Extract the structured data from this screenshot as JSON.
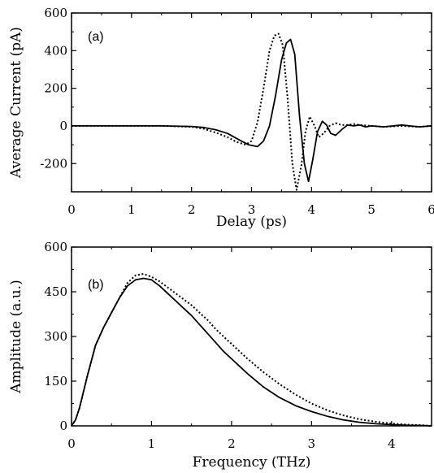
{
  "chart_data": [
    {
      "type": "line",
      "panel_label": "(a)",
      "xlabel": "Delay (ps)",
      "ylabel": "Average Current (pA)",
      "xlim": [
        0,
        6
      ],
      "ylim": [
        -350,
        600
      ],
      "x_ticks": [
        0,
        1,
        2,
        3,
        4,
        5,
        6
      ],
      "y_ticks": [
        -200,
        0,
        200,
        400,
        600
      ],
      "x_tick_labels": [
        "0",
        "1",
        "2",
        "3",
        "4",
        "5",
        "6"
      ],
      "y_tick_labels": [
        "-200",
        "0",
        "200",
        "400",
        "600"
      ],
      "grid": false,
      "series": [
        {
          "style": "solid",
          "color": "#000000",
          "x": [
            0,
            0.5,
            1,
            1.5,
            2,
            2.2,
            2.4,
            2.6,
            2.8,
            2.95,
            3.1,
            3.2,
            3.3,
            3.4,
            3.5,
            3.58,
            3.65,
            3.72,
            3.8,
            3.88,
            3.95,
            4.02,
            4.1,
            4.18,
            4.25,
            4.32,
            4.4,
            4.5,
            4.6,
            4.7,
            4.8,
            4.9,
            5.0,
            5.2,
            5.5,
            5.8,
            6.0
          ],
          "y": [
            0,
            0,
            0,
            0,
            -3,
            -8,
            -20,
            -40,
            -75,
            -100,
            -110,
            -80,
            0,
            160,
            350,
            440,
            460,
            380,
            50,
            -200,
            -295,
            -180,
            -30,
            25,
            5,
            -40,
            -50,
            -20,
            5,
            0,
            5,
            -5,
            0,
            -5,
            5,
            -5,
            0
          ]
        },
        {
          "style": "dotted",
          "color": "#000000",
          "x": [
            0,
            0.5,
            1,
            1.5,
            2,
            2.2,
            2.4,
            2.6,
            2.75,
            2.9,
            3.0,
            3.1,
            3.2,
            3.3,
            3.38,
            3.45,
            3.52,
            3.6,
            3.68,
            3.75,
            3.83,
            3.9,
            3.97,
            4.05,
            4.12,
            4.2,
            4.3,
            4.4,
            4.5,
            4.6,
            4.7,
            4.8,
            5.0,
            5.2,
            5.5,
            5.8,
            6.0
          ],
          "y": [
            0,
            0,
            0,
            0,
            -5,
            -15,
            -35,
            -60,
            -85,
            -100,
            -80,
            20,
            200,
            400,
            480,
            490,
            430,
            150,
            -200,
            -340,
            -210,
            -30,
            50,
            0,
            -60,
            -40,
            0,
            15,
            5,
            5,
            10,
            5,
            0,
            -5,
            0,
            -5,
            0
          ]
        }
      ]
    },
    {
      "type": "line",
      "panel_label": "(b)",
      "xlabel": "Frequency (THz)",
      "ylabel": "Amplitude (a.u.)",
      "xlim": [
        0,
        4.5
      ],
      "ylim": [
        0,
        600
      ],
      "x_ticks": [
        0,
        1,
        2,
        3,
        4
      ],
      "y_ticks": [
        0,
        150,
        300,
        450,
        600
      ],
      "x_tick_labels": [
        "0",
        "1",
        "2",
        "3",
        "4"
      ],
      "y_tick_labels": [
        "0",
        "150",
        "300",
        "450",
        "600"
      ],
      "grid": false,
      "series": [
        {
          "style": "solid",
          "color": "#000000",
          "x": [
            0,
            0.05,
            0.1,
            0.2,
            0.3,
            0.4,
            0.5,
            0.6,
            0.7,
            0.8,
            0.9,
            1.0,
            1.1,
            1.2,
            1.3,
            1.4,
            1.5,
            1.6,
            1.7,
            1.8,
            1.9,
            2.0,
            2.2,
            2.4,
            2.6,
            2.8,
            3.0,
            3.2,
            3.4,
            3.6,
            3.8,
            4.0,
            4.2,
            4.4,
            4.5
          ],
          "y": [
            0,
            20,
            60,
            170,
            270,
            330,
            380,
            430,
            470,
            490,
            495,
            490,
            470,
            445,
            420,
            395,
            370,
            340,
            310,
            280,
            250,
            225,
            175,
            130,
            95,
            68,
            48,
            32,
            20,
            12,
            7,
            4,
            2,
            1,
            0
          ]
        },
        {
          "style": "dotted",
          "color": "#000000",
          "x": [
            0,
            0.05,
            0.1,
            0.2,
            0.3,
            0.4,
            0.5,
            0.6,
            0.7,
            0.8,
            0.9,
            1.0,
            1.1,
            1.2,
            1.3,
            1.4,
            1.5,
            1.6,
            1.7,
            1.8,
            1.9,
            2.0,
            2.2,
            2.4,
            2.6,
            2.8,
            3.0,
            3.2,
            3.4,
            3.6,
            3.8,
            4.0,
            4.2,
            4.4,
            4.5
          ],
          "y": [
            0,
            20,
            60,
            170,
            270,
            330,
            380,
            430,
            480,
            505,
            510,
            500,
            485,
            465,
            445,
            425,
            405,
            380,
            355,
            325,
            300,
            275,
            225,
            180,
            140,
            105,
            75,
            52,
            35,
            22,
            14,
            8,
            4,
            2,
            0
          ]
        }
      ]
    }
  ]
}
